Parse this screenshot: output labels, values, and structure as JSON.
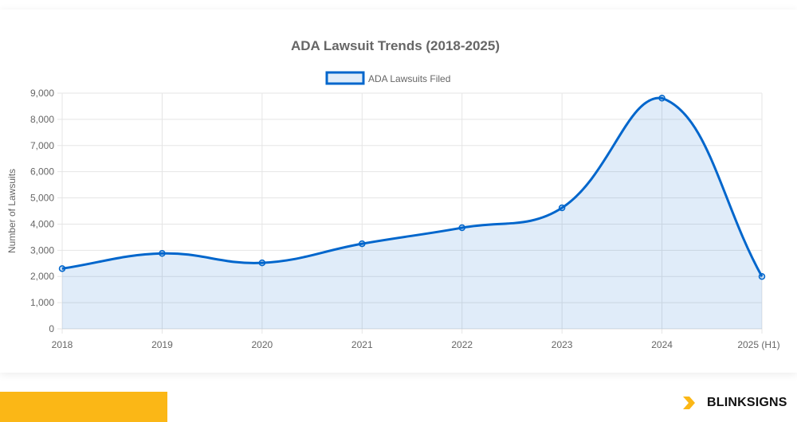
{
  "chart_data": {
    "type": "line",
    "title": "ADA Lawsuit Trends (2018-2025)",
    "categories": [
      "2018",
      "2019",
      "2020",
      "2021",
      "2022",
      "2023",
      "2024",
      "2025 (H1)"
    ],
    "series": [
      {
        "name": "ADA Lawsuits Filed",
        "values": [
          2300,
          2880,
          2520,
          3250,
          3860,
          4620,
          8810,
          2000
        ]
      }
    ],
    "xlabel": "",
    "ylabel": "Number of Lawsuits",
    "ylim": [
      0,
      9000
    ],
    "yticks": [
      "0",
      "1,000",
      "2,000",
      "3,000",
      "4,000",
      "5,000",
      "6,000",
      "7,000",
      "8,000",
      "9,000"
    ],
    "grid": true,
    "legend": "top",
    "fill": true,
    "colors": {
      "line": "#0066cc",
      "fill": "rgba(0,102,204,0.12)",
      "accent": "#fbb716"
    }
  },
  "brand": {
    "name": "BLINKSIGNS"
  }
}
